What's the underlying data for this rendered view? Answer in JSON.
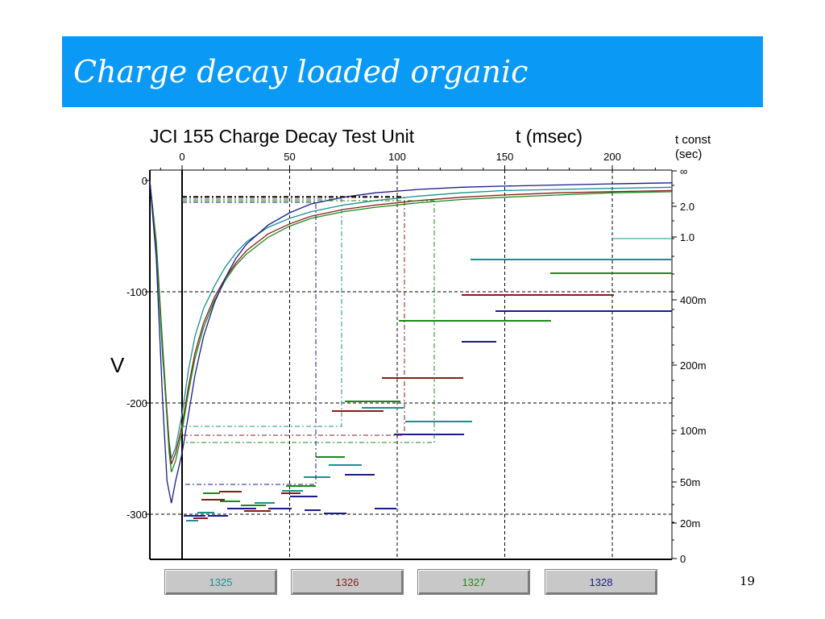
{
  "slide": {
    "title": "Charge decay loaded organic",
    "page_number": "19"
  },
  "buttons": [
    {
      "label": "1325",
      "color": "#1a8f8f"
    },
    {
      "label": "1326",
      "color": "#8b1a1a"
    },
    {
      "label": "1327",
      "color": "#1a8a1a"
    },
    {
      "label": "1328",
      "color": "#1a1a8b"
    }
  ],
  "chart_data": {
    "type": "line",
    "title": "JCI 155 Charge Decay Test Unit",
    "xlabel": "t (msec)",
    "ylabel": "V",
    "right_axis_label": "t const\n(sec)",
    "xlim": [
      -15,
      228
    ],
    "ylim": [
      -340,
      5
    ],
    "x_ticks": [
      0,
      50,
      100,
      150,
      200
    ],
    "y_ticks": [
      0,
      -100,
      -200,
      -300
    ],
    "y_tick_labels": [
      "0",
      "-100",
      "-200",
      "-300"
    ],
    "right_ticks": [
      "∞",
      "2.0",
      "1.0",
      "400m",
      "200m",
      "100m",
      "50m",
      "20m",
      "0"
    ],
    "grid": true,
    "series": [
      {
        "name": "1325",
        "color": "#1a8f8f",
        "x": [
          -15,
          -12,
          -9,
          -6,
          -5,
          -3,
          0,
          3,
          6,
          10,
          15,
          20,
          25,
          30,
          40,
          50,
          60,
          75,
          90,
          110,
          130,
          150,
          175,
          200,
          228
        ],
        "y": [
          0,
          -60,
          -160,
          -235,
          -250,
          -240,
          -210,
          -170,
          -140,
          -115,
          -95,
          -78,
          -65,
          -55,
          -42,
          -34,
          -28,
          -22,
          -18,
          -14,
          -11,
          -9,
          -8,
          -7,
          -6
        ]
      },
      {
        "name": "1326",
        "color": "#8b1a1a",
        "x": [
          -15,
          -12,
          -9,
          -6,
          -5,
          -3,
          0,
          3,
          6,
          10,
          15,
          20,
          25,
          30,
          40,
          50,
          60,
          75,
          90,
          110,
          130,
          150,
          175,
          200,
          228
        ],
        "y": [
          0,
          -55,
          -150,
          -238,
          -255,
          -245,
          -220,
          -185,
          -155,
          -128,
          -105,
          -88,
          -74,
          -63,
          -48,
          -39,
          -32,
          -26,
          -22,
          -18,
          -15,
          -13,
          -11,
          -10,
          -9
        ]
      },
      {
        "name": "1327",
        "color": "#1a8a1a",
        "x": [
          -15,
          -12,
          -9,
          -6,
          -5,
          -3,
          0,
          3,
          6,
          10,
          15,
          20,
          25,
          30,
          40,
          50,
          60,
          75,
          90,
          110,
          130,
          150,
          175,
          200,
          228
        ],
        "y": [
          0,
          -58,
          -155,
          -245,
          -262,
          -252,
          -225,
          -190,
          -160,
          -132,
          -108,
          -90,
          -76,
          -66,
          -51,
          -41,
          -34,
          -28,
          -24,
          -20,
          -17,
          -15,
          -13,
          -11,
          -10
        ]
      },
      {
        "name": "1328",
        "color": "#1a1a8b",
        "x": [
          -15,
          -12,
          -9,
          -7,
          -5,
          -3,
          0,
          3,
          6,
          10,
          15,
          20,
          25,
          30,
          40,
          50,
          60,
          75,
          90,
          110,
          130,
          150,
          175,
          200,
          228
        ],
        "y": [
          0,
          -70,
          -200,
          -270,
          -290,
          -270,
          -245,
          -210,
          -175,
          -140,
          -110,
          -88,
          -70,
          -57,
          -40,
          -29,
          -21,
          -15,
          -11,
          -8,
          -6,
          -5,
          -4,
          -3,
          -2
        ]
      }
    ]
  }
}
